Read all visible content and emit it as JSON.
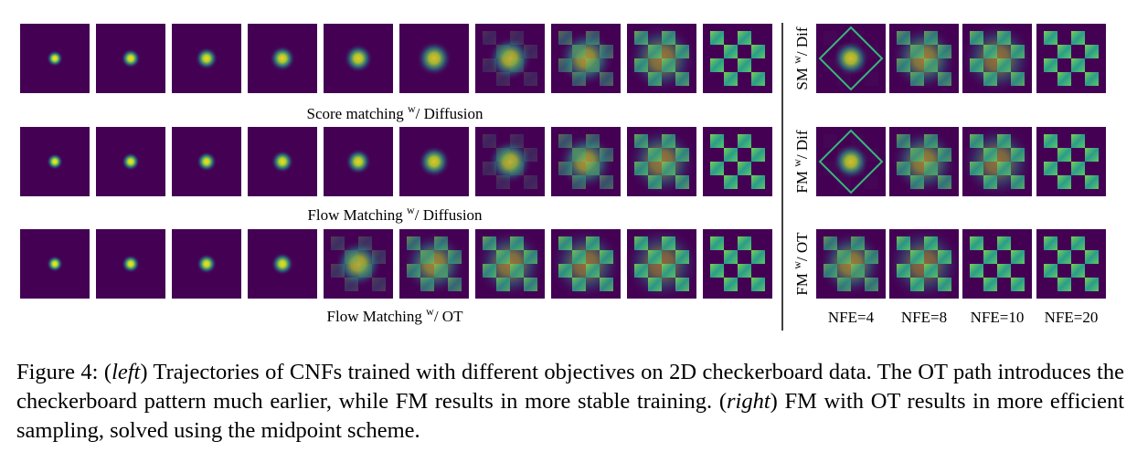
{
  "figure": {
    "left_labels": [
      {
        "pre": "Score matching ",
        "sup": "w",
        "post": "/ Diffusion"
      },
      {
        "pre": "Flow Matching ",
        "sup": "w",
        "post": "/ Diffusion"
      },
      {
        "pre": "Flow Matching ",
        "sup": "w",
        "post": "/ OT"
      }
    ],
    "right_labels": [
      {
        "pre": "SM ",
        "sup": "w",
        "post": "/ Dif"
      },
      {
        "pre": "FM ",
        "sup": "w",
        "post": "/ Dif"
      },
      {
        "pre": "FM ",
        "sup": "w",
        "post": "/ OT"
      }
    ],
    "nfe_labels": [
      "NFE=4",
      "NFE=8",
      "NFE=10",
      "NFE=20"
    ]
  },
  "caption": {
    "prefix": "Figure 4: (",
    "left": "left",
    "middle": ") Trajectories of CNFs trained with different objectives on 2D checkerboard data. The OT path introduces the checkerboard pattern much earlier, while FM results in more stable training. (",
    "right": "right",
    "suffix": ") FM with OT results in more efficient sampling, solved using the midpoint scheme."
  }
}
